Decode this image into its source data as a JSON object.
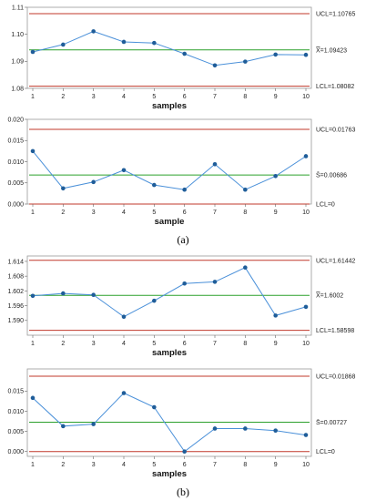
{
  "panel_labels": [
    "(a)",
    "(b)"
  ],
  "chart_data": [
    {
      "type": "line",
      "panel": "a",
      "xlabel": "samples",
      "x": [
        1,
        2,
        3,
        4,
        5,
        6,
        7,
        8,
        9,
        10
      ],
      "ylim": [
        1.08,
        1.11
      ],
      "yticks": [
        1.08,
        1.09,
        1.1,
        1.11
      ],
      "ytick_labels": [
        "1.08",
        "1.09",
        "1.10",
        "1.11"
      ],
      "values": [
        1.0935,
        1.0962,
        1.1011,
        1.0972,
        1.0968,
        1.0928,
        1.0885,
        1.0899,
        1.0925,
        1.0924
      ],
      "ucl": 1.10765,
      "cl": 1.09423,
      "lcl": 1.08082,
      "ucl_label": "UCL=1.10765",
      "cl_label": "X̿=1.09423",
      "lcl_label": "LCL=1.08082"
    },
    {
      "type": "line",
      "panel": "a",
      "xlabel": "sample",
      "x": [
        1,
        2,
        3,
        4,
        5,
        6,
        7,
        8,
        9,
        10
      ],
      "ylim": [
        0.0,
        0.02
      ],
      "yticks": [
        0.0,
        0.005,
        0.01,
        0.015,
        0.02
      ],
      "ytick_labels": [
        "0.000",
        "0.005",
        "0.010",
        "0.015",
        "0.020"
      ],
      "values": [
        0.0125,
        0.0037,
        0.0052,
        0.008,
        0.0045,
        0.0034,
        0.0094,
        0.0034,
        0.0066,
        0.0113
      ],
      "ucl": 0.01763,
      "cl": 0.00686,
      "lcl": 0.0,
      "ucl_label": "UCL=0.01763",
      "cl_label": "S̄=0.00686",
      "lcl_label": "LCL=0"
    },
    {
      "type": "line",
      "panel": "b",
      "xlabel": "samples",
      "x": [
        1,
        2,
        3,
        4,
        5,
        6,
        7,
        8,
        9,
        10
      ],
      "ylim": [
        1.584,
        1.6162
      ],
      "yticks": [
        1.59,
        1.596,
        1.602,
        1.608,
        1.614
      ],
      "ytick_labels": [
        "1.590",
        "1.596",
        "1.602",
        "1.608",
        "1.614"
      ],
      "values": [
        1.6,
        1.601,
        1.6004,
        1.5915,
        1.598,
        1.605,
        1.6057,
        1.6115,
        1.592,
        1.5955
      ],
      "ucl": 1.61442,
      "cl": 1.6002,
      "lcl": 1.58598,
      "ucl_label": "UCL=1.61442",
      "cl_label": "X̿=1.6002",
      "lcl_label": "LCL=1.58598"
    },
    {
      "type": "line",
      "panel": "b",
      "xlabel": "samples",
      "x": [
        1,
        2,
        3,
        4,
        5,
        6,
        7,
        8,
        9,
        10
      ],
      "ylim": [
        -0.0012,
        0.0205
      ],
      "yticks": [
        0.0,
        0.005,
        0.01,
        0.015
      ],
      "ytick_labels": [
        "0.000",
        "0.005",
        "0.010",
        "0.015"
      ],
      "values": [
        0.0133,
        0.0063,
        0.0068,
        0.0145,
        0.011,
        0.0,
        0.0057,
        0.0057,
        0.0052,
        0.0041
      ],
      "ucl": 0.01868,
      "cl": 0.00727,
      "lcl": 0.0,
      "ucl_label": "UCL=0.01868",
      "cl_label": "S̄=0.00727",
      "lcl_label": "LCL=0"
    }
  ]
}
